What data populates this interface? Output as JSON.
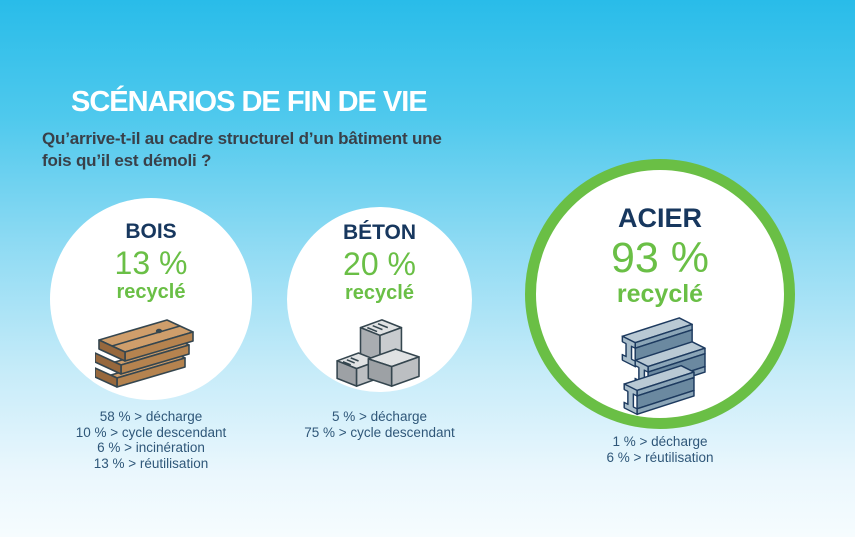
{
  "header": {
    "title": "SCÉNARIOS DE FIN DE VIE",
    "subtitle": "Qu’arrive-t-il au cadre structurel d’un bâtiment une\nfois qu’il est démoli ?"
  },
  "colors": {
    "background_top": "#29bce9",
    "background_bottom": "#f6fcfe",
    "navy": "#17375e",
    "green": "#6abf46",
    "highlight_ring_green": "#6abf45",
    "subtitle_text": "#394049",
    "breakdown_text": "#2f5779",
    "circle_fill": "#ffffff"
  },
  "materials": [
    {
      "id": "bois",
      "name": "BOIS",
      "recycled_percent": "13 %",
      "recycled_label": "recyclé",
      "icon": "wood-planks-icon",
      "highlighted": false,
      "breakdown": [
        "58 % > décharge",
        "10 % > cycle descendant",
        "6 % > incinération",
        "13 % > réutilisation"
      ]
    },
    {
      "id": "beton",
      "name": "BÉTON",
      "recycled_percent": "20 %",
      "recycled_label": "recyclé",
      "icon": "concrete-blocks-icon",
      "highlighted": false,
      "breakdown": [
        "5 % > décharge",
        "75 % > cycle descendant"
      ]
    },
    {
      "id": "acier",
      "name": "ACIER",
      "recycled_percent": "93 %",
      "recycled_label": "recyclé",
      "icon": "steel-beams-icon",
      "highlighted": true,
      "breakdown": [
        "1 % > décharge",
        "6 % > réutilisation"
      ]
    }
  ],
  "chart_data": {
    "type": "table",
    "title": "SCÉNARIOS DE FIN DE VIE",
    "subtitle": "Qu’arrive-t-il au cadre structurel d’un bâtiment une fois qu’il est démoli ?",
    "unit": "%",
    "categories": [
      "BOIS",
      "BÉTON",
      "ACIER"
    ],
    "series": [
      {
        "name": "recyclé",
        "values": [
          13,
          20,
          93
        ]
      },
      {
        "name": "décharge",
        "values": [
          58,
          5,
          1
        ]
      },
      {
        "name": "cycle descendant",
        "values": [
          10,
          75,
          null
        ]
      },
      {
        "name": "incinération",
        "values": [
          6,
          null,
          null
        ]
      },
      {
        "name": "réutilisation",
        "values": [
          13,
          null,
          6
        ]
      }
    ],
    "layout_hints": {
      "highlighted_category": "ACIER",
      "legend_position": "none",
      "grid": false
    }
  }
}
